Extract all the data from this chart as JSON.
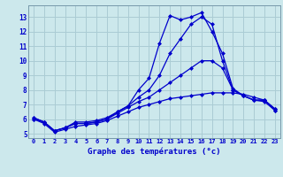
{
  "x": [
    0,
    1,
    2,
    3,
    4,
    5,
    6,
    7,
    8,
    9,
    10,
    11,
    12,
    13,
    14,
    15,
    16,
    17,
    18,
    19,
    20,
    21,
    22,
    23
  ],
  "line1": [
    6.1,
    5.8,
    5.2,
    5.4,
    5.8,
    5.8,
    5.9,
    6.1,
    6.5,
    6.9,
    8.0,
    8.8,
    11.2,
    13.1,
    12.8,
    13.0,
    13.3,
    12.0,
    10.5,
    8.1,
    7.6,
    7.3,
    7.3,
    6.7
  ],
  "line2": [
    6.1,
    5.8,
    5.2,
    5.4,
    5.7,
    5.7,
    5.8,
    6.0,
    6.5,
    6.9,
    7.5,
    8.0,
    9.0,
    10.5,
    11.5,
    12.5,
    13.0,
    12.5,
    10.0,
    8.0,
    7.6,
    7.3,
    7.3,
    6.7
  ],
  "line3": [
    6.0,
    5.8,
    5.2,
    5.4,
    5.7,
    5.7,
    5.8,
    6.0,
    6.4,
    6.8,
    7.2,
    7.5,
    8.0,
    8.5,
    9.0,
    9.5,
    10.0,
    10.0,
    9.5,
    8.0,
    7.6,
    7.3,
    7.2,
    6.6
  ],
  "line4": [
    6.0,
    5.7,
    5.1,
    5.3,
    5.5,
    5.6,
    5.7,
    5.9,
    6.2,
    6.5,
    6.8,
    7.0,
    7.2,
    7.4,
    7.5,
    7.6,
    7.7,
    7.8,
    7.8,
    7.8,
    7.7,
    7.5,
    7.3,
    6.6
  ],
  "line_color": "#0000cc",
  "bg_color": "#cce8ec",
  "grid_color": "#aaccd4",
  "xlabel": "Graphe des températures (°c)",
  "ylabel_vals": [
    5,
    6,
    7,
    8,
    9,
    10,
    11,
    12,
    13
  ],
  "xlabel_vals": [
    0,
    1,
    2,
    3,
    4,
    5,
    6,
    7,
    8,
    9,
    10,
    11,
    12,
    13,
    14,
    15,
    16,
    17,
    18,
    19,
    20,
    21,
    22,
    23
  ],
  "ylim": [
    4.7,
    13.8
  ],
  "xlim": [
    -0.5,
    23.5
  ],
  "marker": "D",
  "markersize": 2.0,
  "linewidth": 0.9
}
